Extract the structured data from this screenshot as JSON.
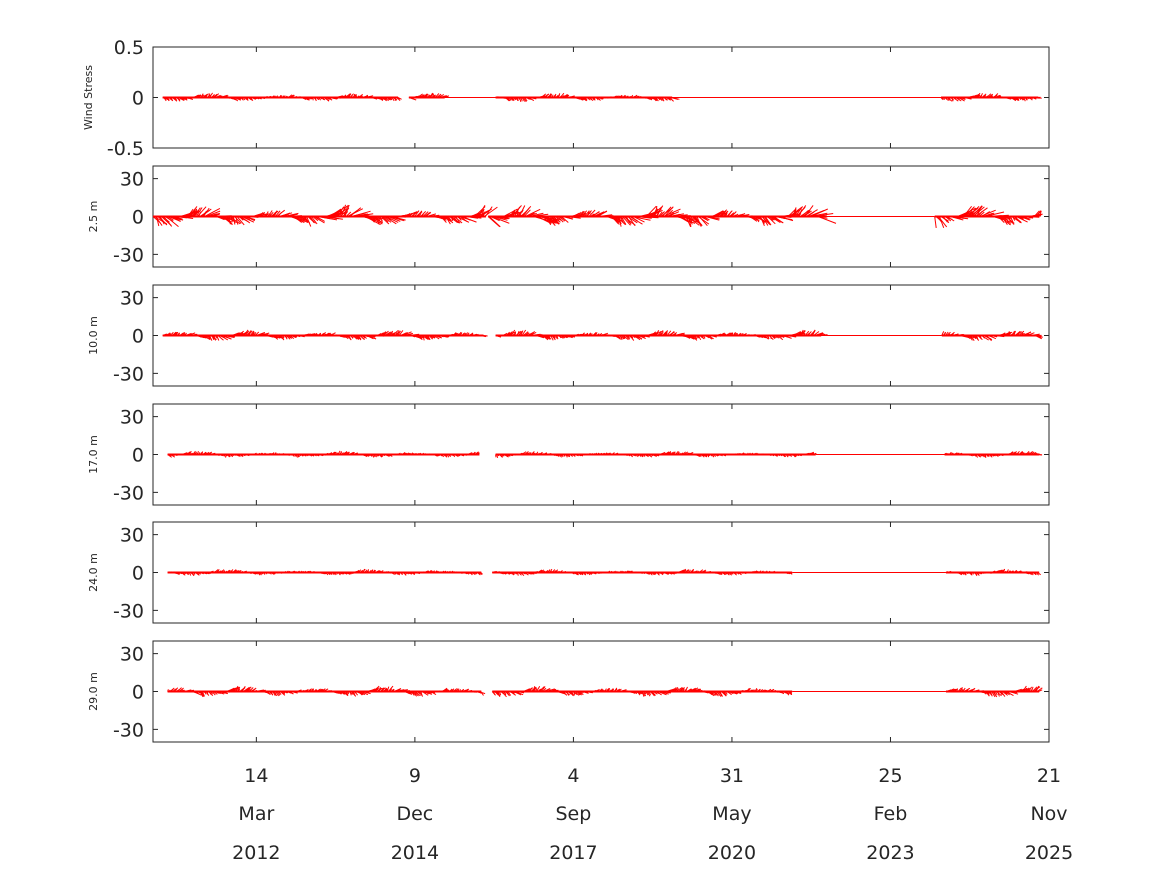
{
  "chart_data": {
    "type": "stick-vector-timeseries",
    "color": "#ff0000",
    "x_axis": {
      "range": [
        "2010-06-01",
        "2025-11-21"
      ],
      "ticks": [
        {
          "date": "2012-03-14",
          "day": "14",
          "month": "Mar",
          "year": "2012"
        },
        {
          "date": "2014-12-09",
          "day": "9",
          "month": "Dec",
          "year": "2014"
        },
        {
          "date": "2017-09-04",
          "day": "4",
          "month": "Sep",
          "year": "2017"
        },
        {
          "date": "2020-05-31",
          "day": "31",
          "month": "May",
          "year": "2020"
        },
        {
          "date": "2023-02-25",
          "day": "25",
          "month": "Feb",
          "year": "2023"
        },
        {
          "date": "2025-11-21",
          "day": "21",
          "month": "Nov",
          "year": "2025"
        }
      ]
    },
    "panels": [
      {
        "ylabel": "Wind Stress",
        "ylim": [
          -0.5,
          0.5
        ],
        "yticks": [
          "0.5",
          "0",
          "-0.5"
        ],
        "yticks_values": [
          0.5,
          0,
          -0.5
        ],
        "amplitude": 0.05,
        "segments": [
          [
            "2010-08-01",
            "2014-08-25"
          ],
          [
            "2014-11-01",
            "2015-06-15"
          ],
          [
            "2016-05-01",
            "2019-05-20"
          ],
          [
            "2024-01-10",
            "2025-09-15"
          ]
        ],
        "baseline": [
          "2015-06-15",
          "2024-01-10"
        ]
      },
      {
        "ylabel": "2.5 m",
        "ylim": [
          -40,
          40
        ],
        "yticks": [
          "30",
          "0",
          "-30"
        ],
        "yticks_values": [
          30,
          0,
          -30
        ],
        "amplitude": 10,
        "segments": [
          [
            "2010-06-01",
            "2016-03-01"
          ],
          [
            "2016-03-15",
            "2021-12-01"
          ],
          [
            "2023-12-01",
            "2025-09-20"
          ]
        ],
        "baseline": [
          "2021-12-01",
          "2023-12-01"
        ]
      },
      {
        "ylabel": "10.0 m",
        "ylim": [
          -40,
          40
        ],
        "yticks": [
          "30",
          "0",
          "-30"
        ],
        "yticks_values": [
          30,
          0,
          -30
        ],
        "amplitude": 5,
        "segments": [
          [
            "2010-08-01",
            "2016-02-15"
          ],
          [
            "2016-05-01",
            "2021-12-15"
          ],
          [
            "2024-01-15",
            "2025-09-20"
          ]
        ],
        "baseline": [
          "2021-12-15",
          "2024-01-15"
        ]
      },
      {
        "ylabel": "17.0 m",
        "ylim": [
          -40,
          40
        ],
        "yticks": [
          "30",
          "0",
          "-30"
        ],
        "yticks_values": [
          30,
          0,
          -30
        ],
        "amplitude": 3,
        "segments": [
          [
            "2010-09-01",
            "2016-01-20"
          ],
          [
            "2016-05-01",
            "2021-11-10"
          ],
          [
            "2024-02-01",
            "2025-09-20"
          ]
        ],
        "baseline": [
          "2021-11-10",
          "2024-02-01"
        ]
      },
      {
        "ylabel": "24.0 m",
        "ylim": [
          -40,
          40
        ],
        "yticks": [
          "30",
          "0",
          "-30"
        ],
        "yticks_values": [
          30,
          0,
          -30
        ],
        "amplitude": 3,
        "segments": [
          [
            "2010-09-01",
            "2016-02-01"
          ],
          [
            "2016-04-10",
            "2021-06-15"
          ],
          [
            "2024-02-10",
            "2025-09-20"
          ]
        ],
        "baseline": [
          "2021-06-15",
          "2024-02-10"
        ]
      },
      {
        "ylabel": "29.0 m",
        "ylim": [
          -40,
          40
        ],
        "yticks": [
          "30",
          "0",
          "-30"
        ],
        "yticks_values": [
          30,
          0,
          -30
        ],
        "amplitude": 5,
        "segments": [
          [
            "2010-09-01",
            "2016-02-01"
          ],
          [
            "2016-04-10",
            "2021-06-15"
          ],
          [
            "2024-02-10",
            "2025-09-20"
          ]
        ],
        "baseline": [
          "2021-06-15",
          "2024-02-10"
        ]
      }
    ]
  }
}
